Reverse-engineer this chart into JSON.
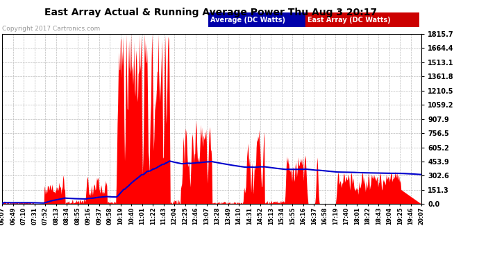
{
  "title": "East Array Actual & Running Average Power Thu Aug 3 20:17",
  "copyright": "Copyright 2017 Cartronics.com",
  "legend_avg": "Average (DC Watts)",
  "legend_east": "East Array (DC Watts)",
  "y_ticks": [
    0.0,
    151.3,
    302.6,
    453.9,
    605.2,
    756.5,
    907.9,
    1059.2,
    1210.5,
    1361.8,
    1513.1,
    1664.4,
    1815.7
  ],
  "ymax": 1815.7,
  "ymin": 0.0,
  "bg_color": "#ffffff",
  "fill_color": "#ff0000",
  "avg_line_color": "#0000cc",
  "grid_color": "#bbbbbb",
  "x_labels": [
    "06:07",
    "06:49",
    "07:10",
    "07:31",
    "07:52",
    "08:13",
    "08:34",
    "08:55",
    "09:16",
    "09:37",
    "09:58",
    "10:19",
    "10:40",
    "11:01",
    "11:22",
    "11:43",
    "12:04",
    "12:25",
    "12:46",
    "13:07",
    "13:28",
    "13:49",
    "14:10",
    "14:31",
    "14:52",
    "15:13",
    "15:34",
    "15:55",
    "16:16",
    "16:37",
    "16:58",
    "17:19",
    "17:40",
    "18:01",
    "18:22",
    "18:43",
    "19:04",
    "19:25",
    "19:46",
    "20:07"
  ]
}
